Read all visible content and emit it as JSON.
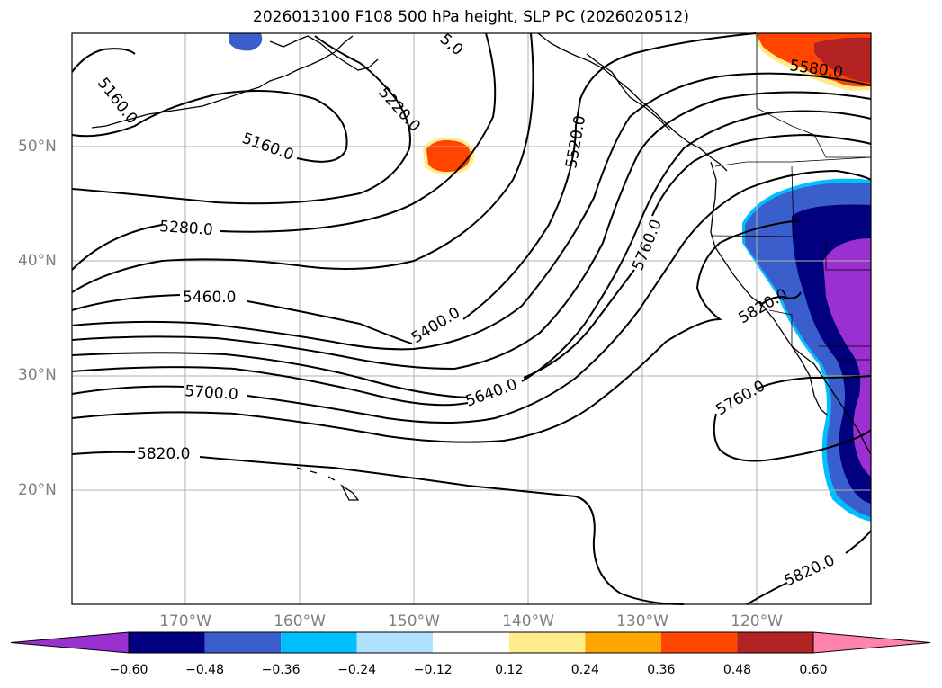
{
  "title": "2026013100 F108 500 hPa height, SLP PC (2026020512)",
  "map": {
    "lat_ticks": [
      "50°N",
      "40°N",
      "30°N",
      "20°N"
    ],
    "lon_ticks": [
      "170°W",
      "160°W",
      "150°W",
      "140°W",
      "130°W",
      "120°W"
    ]
  },
  "contour_labels": [
    "5160.0",
    "5160.0",
    "5220.0",
    "5280.0",
    "5460.0",
    "5700.0",
    "5820.0",
    "5400.0",
    "5640.0",
    "5520.0",
    "5760.0",
    "5580.0",
    "5820.0",
    "5760.0",
    "5820.0",
    "5,0"
  ],
  "colorbar": {
    "tick_labels": [
      "−0.60",
      "−0.48",
      "−0.36",
      "−0.24",
      "−0.12",
      "0.12",
      "0.24",
      "0.36",
      "0.48",
      "0.60"
    ],
    "colors": [
      "#9b30d0",
      "#000080",
      "#3a5fcd",
      "#00bfff",
      "#b0e2ff",
      "#ffffff",
      "#ffec8b",
      "#ffa500",
      "#ff4500",
      "#b22222",
      "#ff83aa"
    ]
  }
}
